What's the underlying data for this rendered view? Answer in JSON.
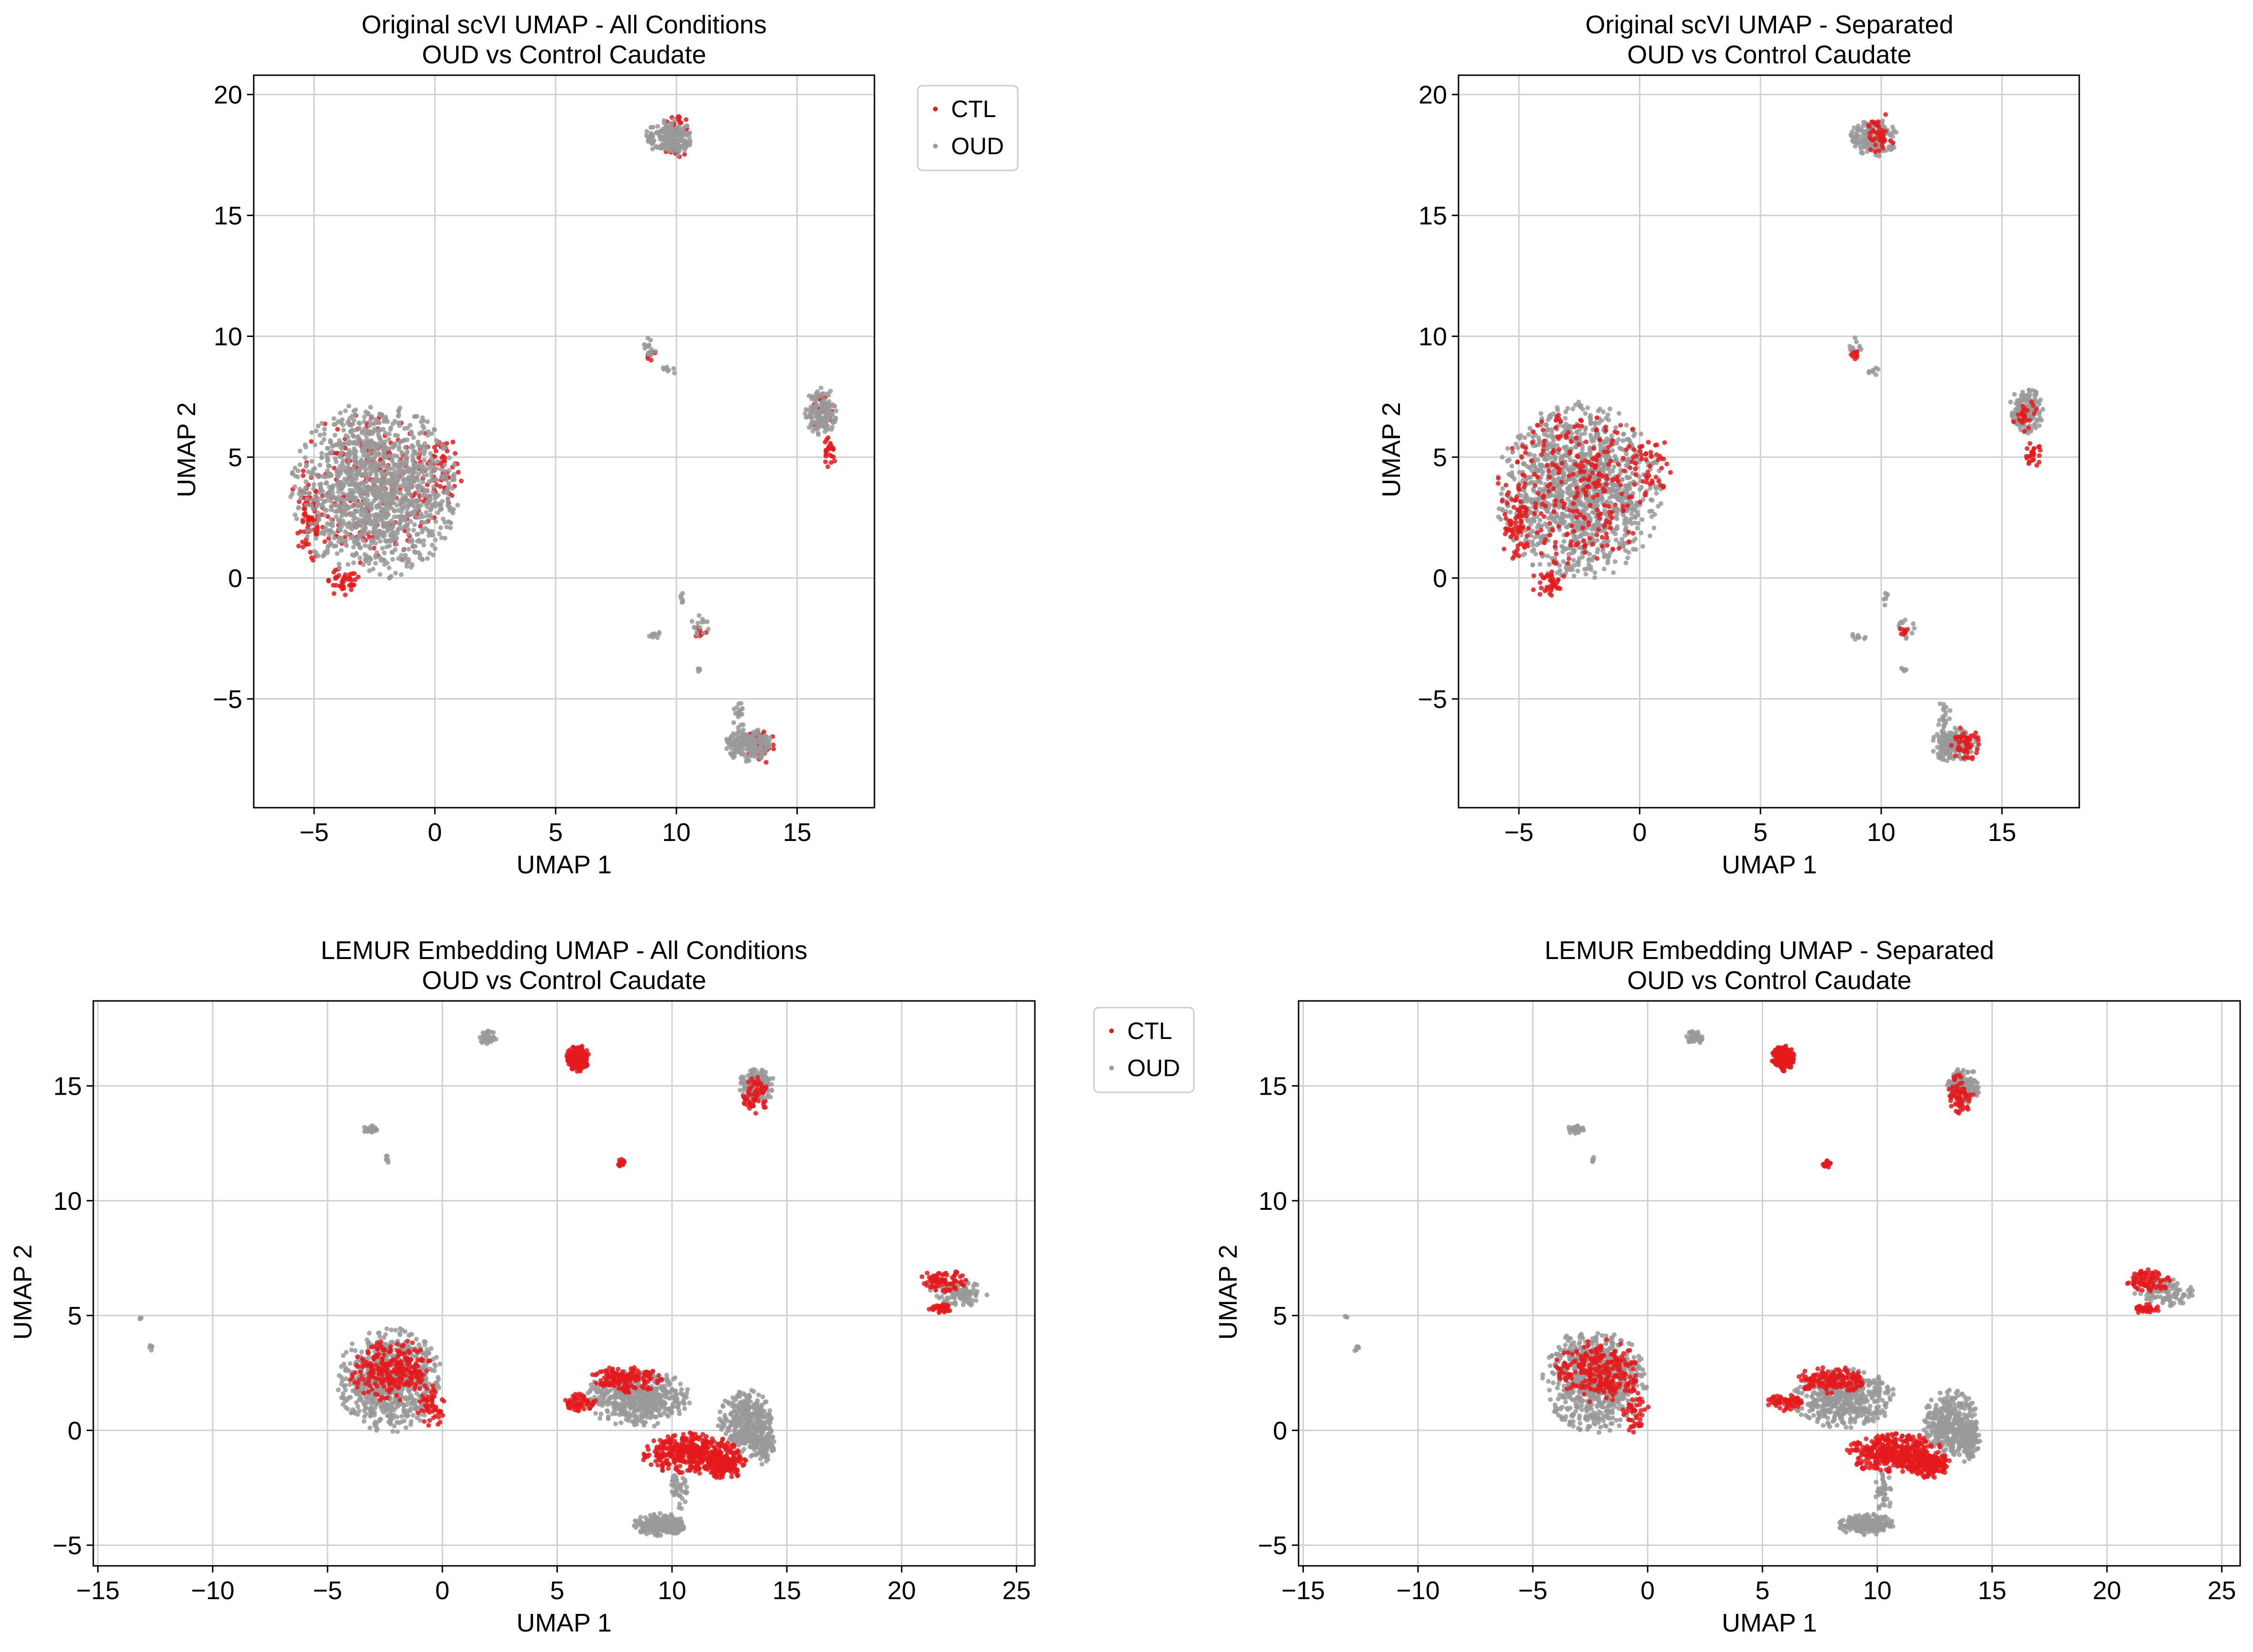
{
  "colors": {
    "CTL": "#e41a1c",
    "OUD": "#999999",
    "grid": "#d0d0d0"
  },
  "chart_data": [
    {
      "type": "scatter",
      "title": [
        "Original scVI UMAP - All Conditions",
        "OUD vs Control Caudate"
      ],
      "xlabel": "UMAP 1",
      "ylabel": "UMAP 2",
      "xlim": [
        -7.5,
        18.2
      ],
      "ylim": [
        -9.5,
        20.8
      ],
      "xticks": [
        -5,
        0,
        5,
        10,
        15
      ],
      "yticks": [
        -5,
        0,
        5,
        10,
        15,
        20
      ],
      "grid": true,
      "legend": {
        "placement": "outside-top-right",
        "entries": [
          "CTL",
          "OUD"
        ]
      },
      "series": [
        {
          "name": "CTL",
          "color": "#e41a1c",
          "role": "clusters",
          "clusters": [
            {
              "cx": -2.5,
              "cy": 3.8,
              "rx": 3.4,
              "ry": 3.4,
              "n": 260
            },
            {
              "cx": -5.2,
              "cy": 2.4,
              "rx": 0.6,
              "ry": 1.8,
              "n": 70
            },
            {
              "cx": -3.8,
              "cy": -0.2,
              "rx": 0.8,
              "ry": 0.6,
              "n": 40
            },
            {
              "cx": 0.4,
              "cy": 4.6,
              "rx": 0.9,
              "ry": 1.5,
              "n": 40
            },
            {
              "cx": 10.0,
              "cy": 18.3,
              "rx": 0.6,
              "ry": 1.0,
              "n": 45
            },
            {
              "cx": 16.3,
              "cy": 5.2,
              "rx": 0.3,
              "ry": 0.7,
              "n": 25
            },
            {
              "cx": 16.0,
              "cy": 6.8,
              "rx": 0.6,
              "ry": 0.8,
              "n": 25
            },
            {
              "cx": 13.5,
              "cy": -6.9,
              "rx": 0.6,
              "ry": 0.8,
              "n": 50
            },
            {
              "cx": 11.0,
              "cy": -2.2,
              "rx": 0.3,
              "ry": 0.3,
              "n": 8
            },
            {
              "cx": 8.9,
              "cy": 9.2,
              "rx": 0.3,
              "ry": 0.3,
              "n": 8
            }
          ]
        },
        {
          "name": "OUD",
          "color": "#999999",
          "role": "clusters",
          "clusters": [
            {
              "cx": -2.5,
              "cy": 3.6,
              "rx": 3.5,
              "ry": 3.7,
              "n": 1300
            },
            {
              "cx": 9.7,
              "cy": 18.2,
              "rx": 1.0,
              "ry": 0.8,
              "n": 180
            },
            {
              "cx": 16.0,
              "cy": 6.9,
              "rx": 0.7,
              "ry": 1.0,
              "n": 160
            },
            {
              "cx": 13.0,
              "cy": -6.9,
              "rx": 1.0,
              "ry": 0.7,
              "n": 200
            },
            {
              "cx": 12.6,
              "cy": -5.7,
              "rx": 0.3,
              "ry": 0.6,
              "n": 20
            },
            {
              "cx": 8.9,
              "cy": 9.5,
              "rx": 0.3,
              "ry": 0.5,
              "n": 15
            },
            {
              "cx": 9.7,
              "cy": 8.6,
              "rx": 0.3,
              "ry": 0.2,
              "n": 8
            },
            {
              "cx": 9.1,
              "cy": -2.4,
              "rx": 0.4,
              "ry": 0.2,
              "n": 10
            },
            {
              "cx": 10.2,
              "cy": -0.8,
              "rx": 0.1,
              "ry": 0.4,
              "n": 6
            },
            {
              "cx": 11.0,
              "cy": -2.0,
              "rx": 0.4,
              "ry": 0.5,
              "n": 14
            },
            {
              "cx": 10.9,
              "cy": -3.8,
              "rx": 0.2,
              "ry": 0.1,
              "n": 5
            }
          ]
        }
      ]
    },
    {
      "type": "scatter",
      "title": [
        "Original scVI UMAP - Separated",
        "OUD vs Control Caudate"
      ],
      "xlabel": "UMAP 1",
      "ylabel": "UMAP 2",
      "xlim": [
        -7.5,
        18.2
      ],
      "ylim": [
        -9.5,
        20.8
      ],
      "xticks": [
        -5,
        0,
        5,
        10,
        15
      ],
      "yticks": [
        -5,
        0,
        5,
        10,
        15,
        20
      ],
      "grid": true,
      "series": [
        {
          "name": "OUD",
          "color": "#999999",
          "role": "clusters",
          "clusters": [
            {
              "cx": -2.5,
              "cy": 3.6,
              "rx": 3.5,
              "ry": 3.7,
              "n": 1300
            },
            {
              "cx": 9.7,
              "cy": 18.2,
              "rx": 1.0,
              "ry": 0.8,
              "n": 180
            },
            {
              "cx": 16.0,
              "cy": 6.9,
              "rx": 0.7,
              "ry": 1.0,
              "n": 160
            },
            {
              "cx": 13.0,
              "cy": -6.9,
              "rx": 1.0,
              "ry": 0.7,
              "n": 200
            },
            {
              "cx": 12.6,
              "cy": -5.7,
              "rx": 0.3,
              "ry": 0.6,
              "n": 20
            },
            {
              "cx": 8.9,
              "cy": 9.5,
              "rx": 0.3,
              "ry": 0.5,
              "n": 15
            },
            {
              "cx": 9.7,
              "cy": 8.6,
              "rx": 0.3,
              "ry": 0.2,
              "n": 8
            },
            {
              "cx": 9.1,
              "cy": -2.4,
              "rx": 0.4,
              "ry": 0.2,
              "n": 10
            },
            {
              "cx": 10.2,
              "cy": -0.8,
              "rx": 0.1,
              "ry": 0.4,
              "n": 6
            },
            {
              "cx": 11.0,
              "cy": -2.0,
              "rx": 0.4,
              "ry": 0.5,
              "n": 14
            },
            {
              "cx": 10.9,
              "cy": -3.8,
              "rx": 0.2,
              "ry": 0.1,
              "n": 5
            }
          ]
        },
        {
          "name": "CTL",
          "color": "#e41a1c",
          "role": "clusters",
          "clusters": [
            {
              "cx": -2.5,
              "cy": 3.8,
              "rx": 3.4,
              "ry": 3.4,
              "n": 260
            },
            {
              "cx": -5.2,
              "cy": 2.4,
              "rx": 0.6,
              "ry": 1.8,
              "n": 70
            },
            {
              "cx": -3.8,
              "cy": -0.2,
              "rx": 0.8,
              "ry": 0.6,
              "n": 40
            },
            {
              "cx": 0.4,
              "cy": 4.6,
              "rx": 0.9,
              "ry": 1.5,
              "n": 40
            },
            {
              "cx": 10.0,
              "cy": 18.3,
              "rx": 0.6,
              "ry": 1.0,
              "n": 45
            },
            {
              "cx": 16.3,
              "cy": 5.2,
              "rx": 0.3,
              "ry": 0.7,
              "n": 25
            },
            {
              "cx": 16.0,
              "cy": 6.8,
              "rx": 0.6,
              "ry": 0.8,
              "n": 25
            },
            {
              "cx": 13.5,
              "cy": -6.9,
              "rx": 0.6,
              "ry": 0.8,
              "n": 50
            },
            {
              "cx": 11.0,
              "cy": -2.2,
              "rx": 0.3,
              "ry": 0.3,
              "n": 8
            },
            {
              "cx": 8.9,
              "cy": 9.2,
              "rx": 0.3,
              "ry": 0.3,
              "n": 8
            }
          ]
        }
      ]
    },
    {
      "type": "scatter",
      "title": [
        "LEMUR Embedding UMAP - All Conditions",
        "OUD vs Control Caudate"
      ],
      "xlabel": "UMAP 1",
      "ylabel": "UMAP 2",
      "xlim": [
        -15.2,
        25.8
      ],
      "ylim": [
        -5.9,
        18.7
      ],
      "xticks": [
        -15,
        -10,
        -5,
        0,
        5,
        10,
        15,
        20,
        25
      ],
      "yticks": [
        -5,
        0,
        5,
        10,
        15
      ],
      "grid": true,
      "legend": {
        "placement": "outside-top-right",
        "entries": [
          "CTL",
          "OUD"
        ]
      },
      "series": [
        {
          "name": "OUD",
          "color": "#999999",
          "role": "clusters",
          "clusters": [
            {
              "cx": -2.3,
              "cy": 2.2,
              "rx": 2.3,
              "ry": 2.3,
              "n": 700
            },
            {
              "cx": 8.5,
              "cy": 1.4,
              "rx": 2.3,
              "ry": 1.3,
              "n": 500
            },
            {
              "cx": 13.2,
              "cy": 0.3,
              "rx": 1.2,
              "ry": 1.5,
              "n": 350
            },
            {
              "cx": 14.0,
              "cy": -0.5,
              "rx": 0.5,
              "ry": 1.0,
              "n": 100
            },
            {
              "cx": 9.5,
              "cy": -4.1,
              "rx": 1.2,
              "ry": 0.5,
              "n": 200
            },
            {
              "cx": 10.3,
              "cy": -2.7,
              "rx": 0.4,
              "ry": 1.0,
              "n": 40
            },
            {
              "cx": 13.7,
              "cy": 15.0,
              "rx": 0.8,
              "ry": 0.8,
              "n": 150
            },
            {
              "cx": 22.5,
              "cy": 6.0,
              "rx": 1.3,
              "ry": 0.6,
              "n": 100
            },
            {
              "cx": 2.0,
              "cy": 17.1,
              "rx": 0.4,
              "ry": 0.3,
              "n": 40
            },
            {
              "cx": -3.1,
              "cy": 13.1,
              "rx": 0.4,
              "ry": 0.2,
              "n": 25
            },
            {
              "cx": -2.4,
              "cy": 11.8,
              "rx": 0.1,
              "ry": 0.2,
              "n": 6
            },
            {
              "cx": -13.1,
              "cy": 4.9,
              "rx": 0.1,
              "ry": 0.1,
              "n": 3
            },
            {
              "cx": -12.7,
              "cy": 3.6,
              "rx": 0.2,
              "ry": 0.2,
              "n": 6
            }
          ]
        },
        {
          "name": "CTL",
          "color": "#e41a1c",
          "role": "clusters",
          "clusters": [
            {
              "cx": -2.2,
              "cy": 2.6,
              "rx": 1.9,
              "ry": 1.4,
              "n": 250
            },
            {
              "cx": -0.5,
              "cy": 1.0,
              "rx": 0.6,
              "ry": 1.2,
              "n": 50
            },
            {
              "cx": 8.0,
              "cy": 2.2,
              "rx": 1.6,
              "ry": 0.6,
              "n": 150
            },
            {
              "cx": 6.0,
              "cy": 1.2,
              "rx": 0.8,
              "ry": 0.4,
              "n": 60
            },
            {
              "cx": 10.8,
              "cy": -1.0,
              "rx": 2.2,
              "ry": 0.9,
              "n": 400
            },
            {
              "cx": 12.3,
              "cy": -1.5,
              "rx": 1.0,
              "ry": 0.6,
              "n": 150
            },
            {
              "cx": 5.9,
              "cy": 16.2,
              "rx": 0.5,
              "ry": 0.6,
              "n": 200
            },
            {
              "cx": 13.6,
              "cy": 14.6,
              "rx": 0.6,
              "ry": 0.9,
              "n": 60
            },
            {
              "cx": 21.8,
              "cy": 6.5,
              "rx": 1.0,
              "ry": 0.5,
              "n": 80
            },
            {
              "cx": 21.7,
              "cy": 5.3,
              "rx": 0.6,
              "ry": 0.2,
              "n": 40
            },
            {
              "cx": 7.8,
              "cy": 11.6,
              "rx": 0.2,
              "ry": 0.2,
              "n": 20
            }
          ]
        }
      ]
    },
    {
      "type": "scatter",
      "title": [
        "LEMUR Embedding UMAP - Separated",
        "OUD vs Control Caudate"
      ],
      "xlabel": "UMAP 1",
      "ylabel": "UMAP 2",
      "xlim": [
        -15.2,
        25.8
      ],
      "ylim": [
        -5.9,
        18.7
      ],
      "xticks": [
        -15,
        -10,
        -5,
        0,
        5,
        10,
        15,
        20,
        25
      ],
      "yticks": [
        -5,
        0,
        5,
        10,
        15
      ],
      "grid": true,
      "series": [
        {
          "name": "OUD",
          "color": "#999999",
          "role": "clusters",
          "clusters": [
            {
              "cx": -2.3,
              "cy": 2.2,
              "rx": 2.3,
              "ry": 2.3,
              "n": 700
            },
            {
              "cx": 8.5,
              "cy": 1.4,
              "rx": 2.3,
              "ry": 1.3,
              "n": 500
            },
            {
              "cx": 13.2,
              "cy": 0.3,
              "rx": 1.2,
              "ry": 1.5,
              "n": 350
            },
            {
              "cx": 14.0,
              "cy": -0.5,
              "rx": 0.5,
              "ry": 1.0,
              "n": 100
            },
            {
              "cx": 9.5,
              "cy": -4.1,
              "rx": 1.2,
              "ry": 0.5,
              "n": 200
            },
            {
              "cx": 10.3,
              "cy": -2.7,
              "rx": 0.4,
              "ry": 1.0,
              "n": 40
            },
            {
              "cx": 13.7,
              "cy": 15.0,
              "rx": 0.8,
              "ry": 0.8,
              "n": 150
            },
            {
              "cx": 22.5,
              "cy": 6.0,
              "rx": 1.3,
              "ry": 0.6,
              "n": 100
            },
            {
              "cx": 2.0,
              "cy": 17.1,
              "rx": 0.4,
              "ry": 0.3,
              "n": 40
            },
            {
              "cx": -3.1,
              "cy": 13.1,
              "rx": 0.4,
              "ry": 0.2,
              "n": 25
            },
            {
              "cx": -2.4,
              "cy": 11.8,
              "rx": 0.1,
              "ry": 0.2,
              "n": 6
            },
            {
              "cx": -13.1,
              "cy": 4.9,
              "rx": 0.1,
              "ry": 0.1,
              "n": 3
            },
            {
              "cx": -12.7,
              "cy": 3.6,
              "rx": 0.2,
              "ry": 0.2,
              "n": 6
            }
          ]
        },
        {
          "name": "CTL",
          "color": "#e41a1c",
          "role": "clusters",
          "clusters": [
            {
              "cx": -2.2,
              "cy": 2.6,
              "rx": 1.9,
              "ry": 1.4,
              "n": 250
            },
            {
              "cx": -0.5,
              "cy": 1.0,
              "rx": 0.6,
              "ry": 1.2,
              "n": 50
            },
            {
              "cx": 8.0,
              "cy": 2.2,
              "rx": 1.6,
              "ry": 0.6,
              "n": 150
            },
            {
              "cx": 6.0,
              "cy": 1.2,
              "rx": 0.8,
              "ry": 0.4,
              "n": 60
            },
            {
              "cx": 10.8,
              "cy": -1.0,
              "rx": 2.2,
              "ry": 0.9,
              "n": 400
            },
            {
              "cx": 12.3,
              "cy": -1.5,
              "rx": 1.0,
              "ry": 0.6,
              "n": 150
            },
            {
              "cx": 5.9,
              "cy": 16.2,
              "rx": 0.5,
              "ry": 0.6,
              "n": 200
            },
            {
              "cx": 13.6,
              "cy": 14.6,
              "rx": 0.6,
              "ry": 0.9,
              "n": 60
            },
            {
              "cx": 21.8,
              "cy": 6.5,
              "rx": 1.0,
              "ry": 0.5,
              "n": 80
            },
            {
              "cx": 21.7,
              "cy": 5.3,
              "rx": 0.6,
              "ry": 0.2,
              "n": 40
            },
            {
              "cx": 7.8,
              "cy": 11.6,
              "rx": 0.2,
              "ry": 0.2,
              "n": 20
            }
          ]
        }
      ]
    }
  ]
}
